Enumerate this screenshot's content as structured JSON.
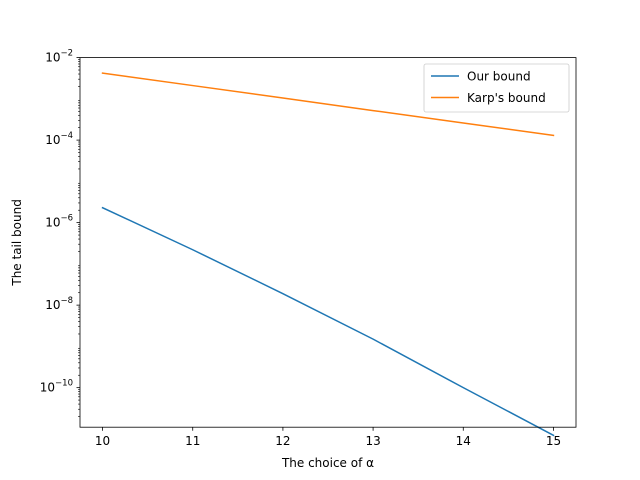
{
  "chart_data": {
    "type": "line",
    "xlabel": "The choice of α",
    "ylabel": "The tail bound",
    "x_scale": "linear",
    "y_scale": "log",
    "xlim": [
      9.75,
      15.25
    ],
    "ylim": [
      1.1e-11,
      0.01
    ],
    "x_ticks": [
      10,
      11,
      12,
      13,
      14,
      15
    ],
    "x_tick_labels": [
      "10",
      "11",
      "12",
      "13",
      "14",
      "15"
    ],
    "y_ticks": [
      1e-10,
      1e-08,
      1e-06,
      0.0001,
      0.01
    ],
    "y_tick_labels": [
      {
        "base": "10",
        "exp": "−10"
      },
      {
        "base": "10",
        "exp": "−8"
      },
      {
        "base": "10",
        "exp": "−6"
      },
      {
        "base": "10",
        "exp": "−4"
      },
      {
        "base": "10",
        "exp": "−2"
      }
    ],
    "grid": false,
    "legend_position": "top-right",
    "x": [
      10,
      11,
      12,
      13,
      14,
      15
    ],
    "series": [
      {
        "name": "Our bound",
        "color": "#1f77b4",
        "values": [
          2.3e-06,
          2.2e-07,
          1.9e-08,
          1.5e-09,
          1e-10,
          7e-12
        ]
      },
      {
        "name": "Karp's bound",
        "color": "#ff7f0e",
        "values": [
          0.0042,
          0.0021,
          0.00105,
          0.00052,
          0.00026,
          0.00013
        ]
      }
    ]
  }
}
